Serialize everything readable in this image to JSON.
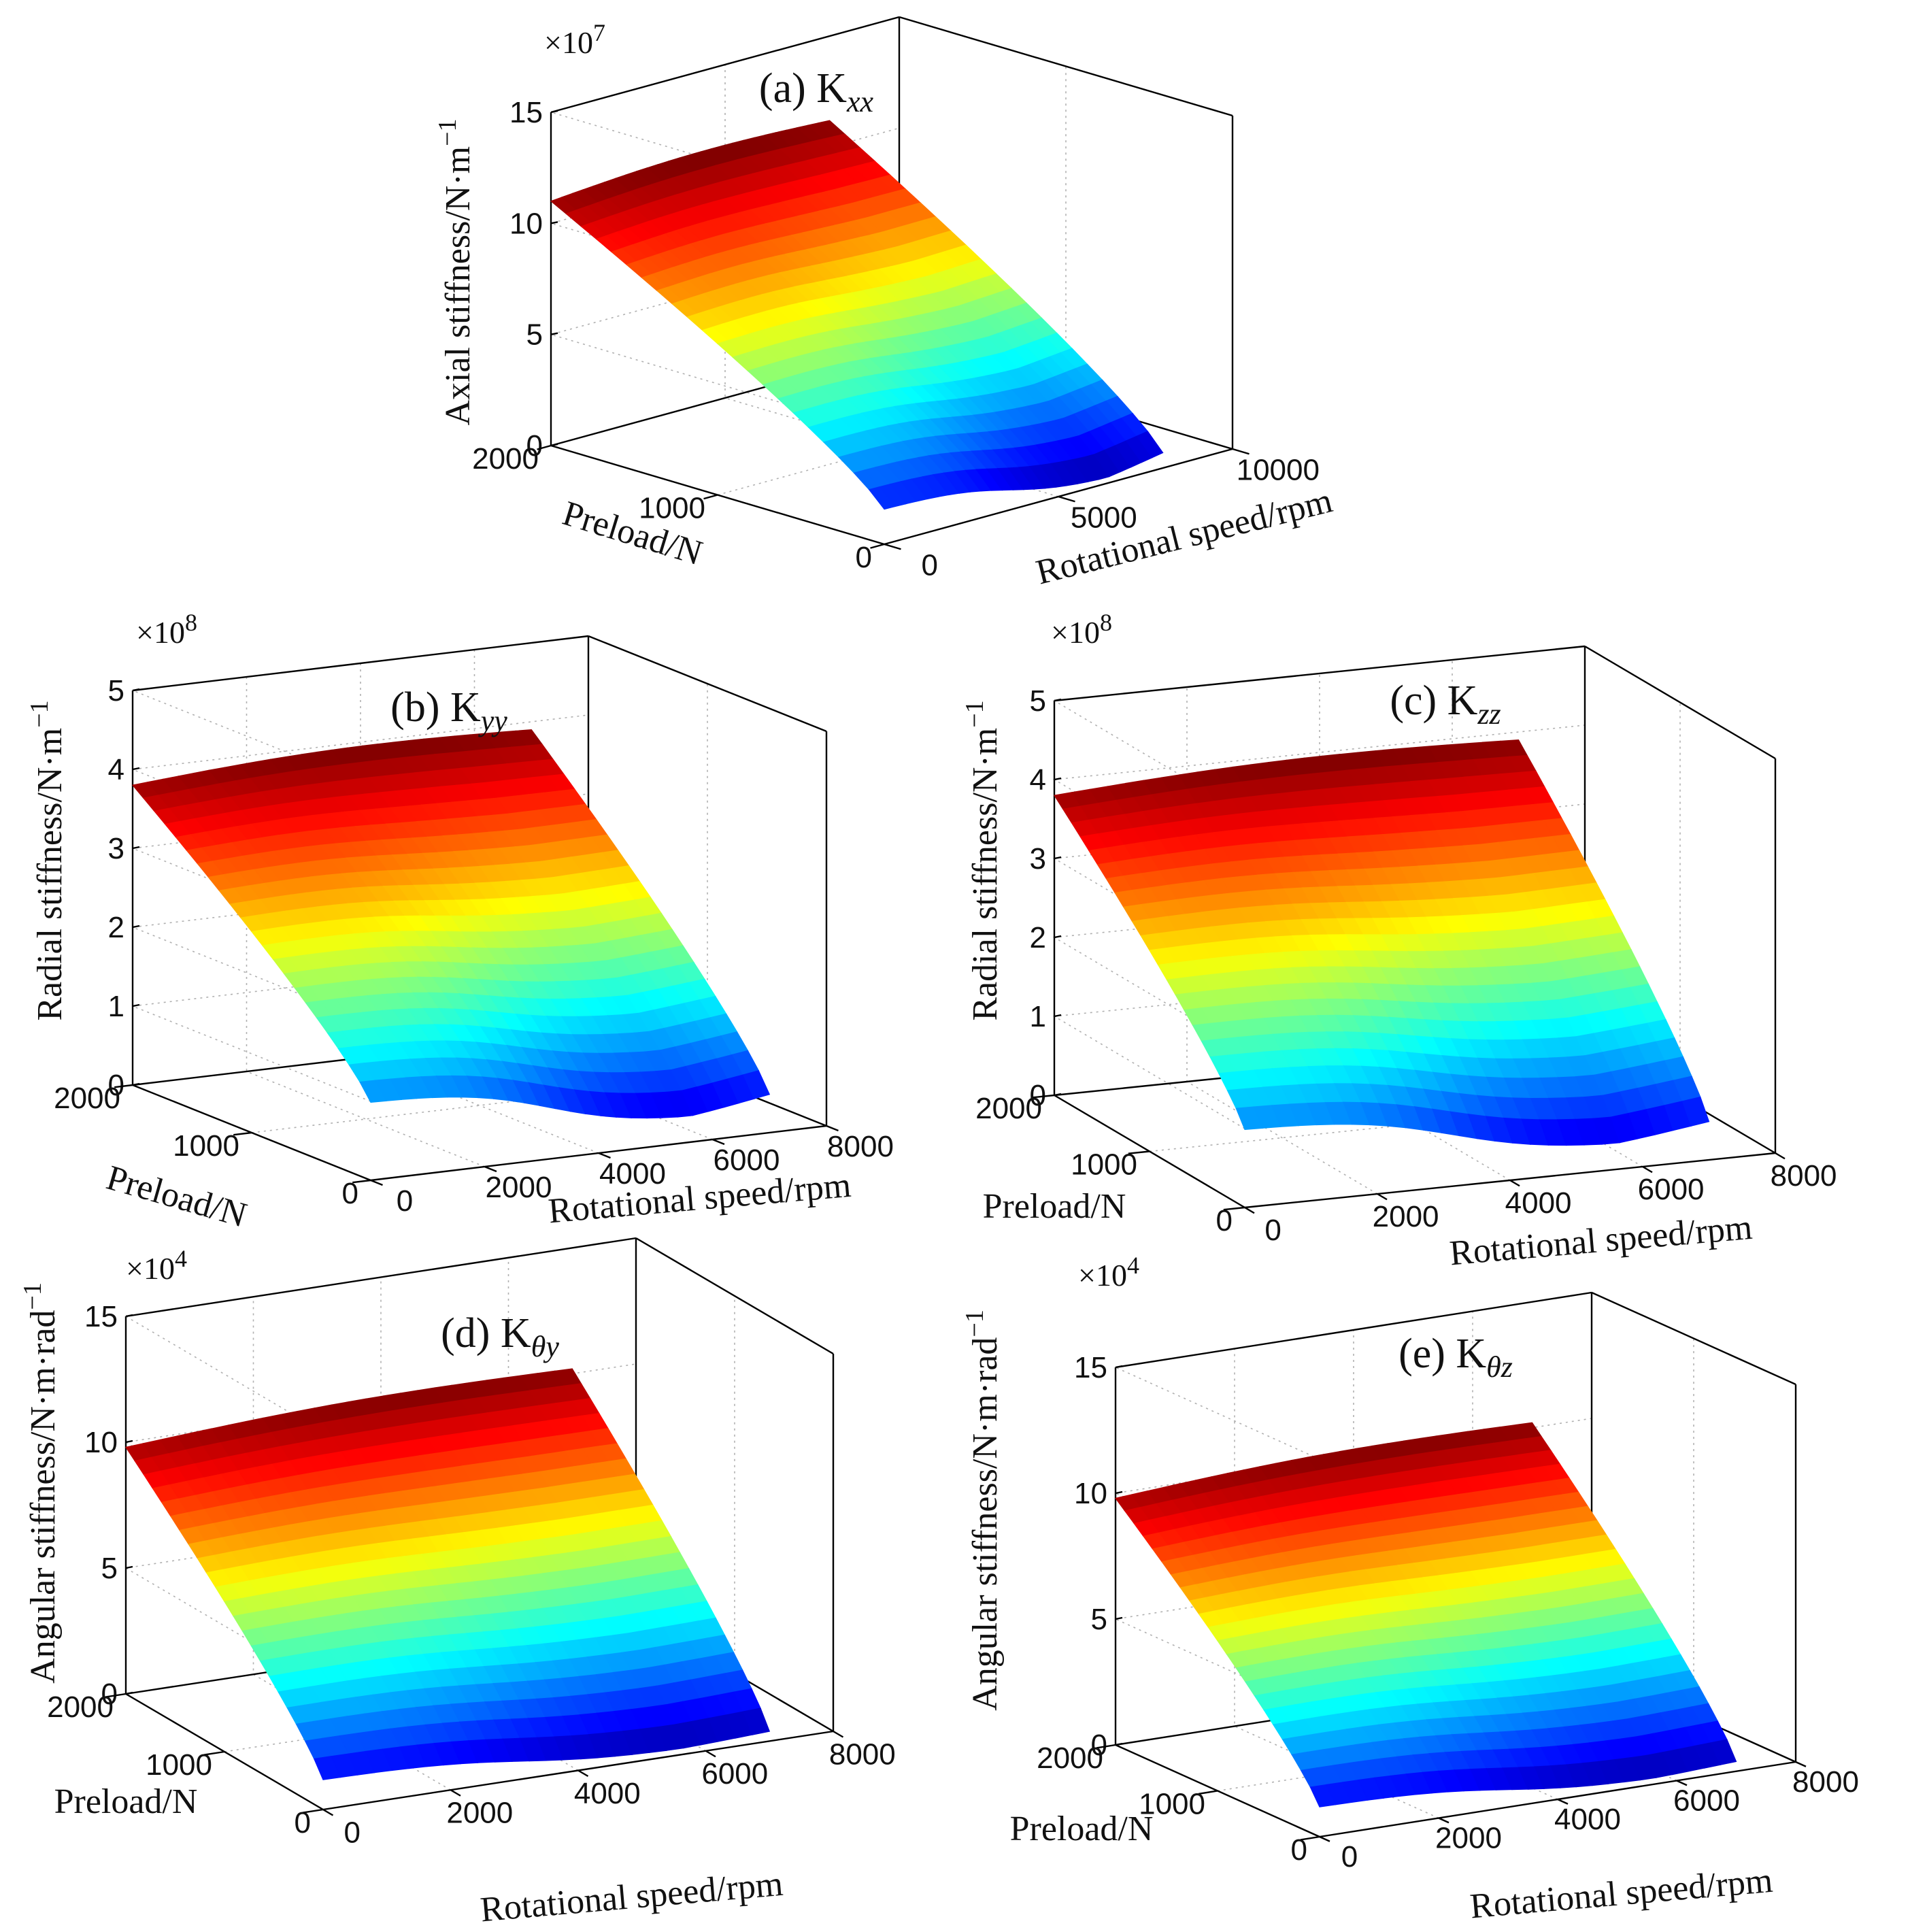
{
  "figure": {
    "colormap": [
      "#00008f",
      "#0000ff",
      "#0080ff",
      "#00ffff",
      "#80ff80",
      "#ffff00",
      "#ff8000",
      "#ff0000",
      "#800000"
    ]
  },
  "chart_data": [
    {
      "id": "a",
      "type": "surface3d",
      "title": "(a) K",
      "title_sub": "xx",
      "zlabel": "Axial stiffness/N·m",
      "zlabel_sup": "−1",
      "xlabel": "Rotational speed/rpm",
      "ylabel": "Preload/N",
      "z_multiplier": "×10",
      "z_multiplier_exp": "7",
      "xlim": [
        0,
        10000
      ],
      "ylim": [
        0,
        2000
      ],
      "zlim": [
        0,
        15
      ],
      "x_ticks": [
        "0",
        "5000",
        "10000"
      ],
      "y_ticks": [
        "0",
        "1000",
        "2000"
      ],
      "z_ticks": [
        "0",
        "5",
        "10",
        "15"
      ],
      "x_domain_end": 8000,
      "corner_values": {
        "z_at_x0_ymax": 11.0,
        "z_at_xmax_ymax": 11.2,
        "z_at_x0_y0": 1.6,
        "z_at_xmax_y0": 1.0,
        "z_min_valley": 0.2
      }
    },
    {
      "id": "b",
      "type": "surface3d",
      "title": "(b) K",
      "title_sub": "yy",
      "zlabel": "Radial stiffness/N·m",
      "zlabel_sup": "−1",
      "xlabel": "Rotational speed/rpm",
      "ylabel": "Preload/N",
      "z_multiplier": "×10",
      "z_multiplier_exp": "8",
      "xlim": [
        0,
        8000
      ],
      "ylim": [
        0,
        2000
      ],
      "zlim": [
        0,
        5
      ],
      "x_ticks": [
        "0",
        "2000",
        "4000",
        "6000",
        "8000"
      ],
      "y_ticks": [
        "0",
        "1000",
        "2000"
      ],
      "z_ticks": [
        "0",
        "1",
        "2",
        "3",
        "4",
        "5"
      ],
      "x_domain_end": 7000,
      "corner_values": {
        "z_at_x0_ymax": 3.8,
        "z_at_xmax_ymax": 3.9,
        "z_at_x0_y0": 1.0,
        "z_at_xmax_y0": 0.6,
        "z_min_valley": 0.3
      }
    },
    {
      "id": "c",
      "type": "surface3d",
      "title": "(c) K",
      "title_sub": "zz",
      "zlabel": "Radial stiffness/N·m",
      "zlabel_sup": "−1",
      "xlabel": "Rotational speed/rpm",
      "ylabel": "Preload/N",
      "z_multiplier": "×10",
      "z_multiplier_exp": "8",
      "xlim": [
        0,
        8000
      ],
      "ylim": [
        0,
        2000
      ],
      "zlim": [
        0,
        5
      ],
      "x_ticks": [
        "0",
        "2000",
        "4000",
        "6000",
        "8000"
      ],
      "y_ticks": [
        "0",
        "1000",
        "2000"
      ],
      "z_ticks": [
        "0",
        "1",
        "2",
        "3",
        "4",
        "5"
      ],
      "x_domain_end": 7000,
      "corner_values": {
        "z_at_x0_ymax": 3.8,
        "z_at_xmax_ymax": 3.9,
        "z_at_x0_y0": 1.0,
        "z_at_xmax_y0": 0.6,
        "z_min_valley": 0.3
      }
    },
    {
      "id": "d",
      "type": "surface3d",
      "title": "(d) K",
      "title_sub": "θy",
      "zlabel": "Angular stiffness/N·m·rad",
      "zlabel_sup": "−1",
      "xlabel": "Rotational speed/rpm",
      "ylabel": "Preload/N",
      "z_multiplier": "×10",
      "z_multiplier_exp": "4",
      "xlim": [
        0,
        8000
      ],
      "ylim": [
        0,
        2000
      ],
      "zlim": [
        0,
        15
      ],
      "x_ticks": [
        "0",
        "2000",
        "4000",
        "6000",
        "8000"
      ],
      "y_ticks": [
        "0",
        "1000",
        "2000"
      ],
      "z_ticks": [
        "0",
        "5",
        "10",
        "15"
      ],
      "x_domain_end": 7000,
      "corner_values": {
        "z_at_x0_ymax": 9.8,
        "z_at_xmax_ymax": 10.2,
        "z_at_x0_y0": 1.2,
        "z_at_xmax_y0": 0.5,
        "z_min_valley": 0.2
      }
    },
    {
      "id": "e",
      "type": "surface3d",
      "title": "(e) K",
      "title_sub": "θz",
      "zlabel": "Angular stiffness/N·m·rad",
      "zlabel_sup": "−1",
      "xlabel": "Rotational speed/rpm",
      "ylabel": "Preload/N",
      "z_multiplier": "×10",
      "z_multiplier_exp": "4",
      "xlim": [
        0,
        8000
      ],
      "ylim": [
        0,
        2000
      ],
      "zlim": [
        0,
        15
      ],
      "x_ticks": [
        "0",
        "2000",
        "4000",
        "6000",
        "8000"
      ],
      "y_ticks": [
        "0",
        "1000",
        "2000"
      ],
      "z_ticks": [
        "0",
        "5",
        "10",
        "15"
      ],
      "x_domain_end": 7000,
      "corner_values": {
        "z_at_x0_ymax": 9.8,
        "z_at_xmax_ymax": 10.2,
        "z_at_x0_y0": 1.2,
        "z_at_xmax_y0": 0.5,
        "z_min_valley": 0.2
      }
    }
  ]
}
